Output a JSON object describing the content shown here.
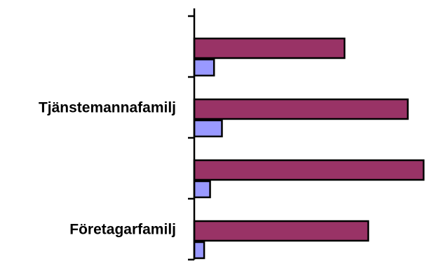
{
  "chart_data": {
    "type": "bar",
    "orientation": "horizontal",
    "title": "",
    "xlabel": "",
    "ylabel": "",
    "categories": [
      "Företagarfamilj",
      "",
      "Tjänstemannafamilj",
      ""
    ],
    "series": [
      {
        "values": [
          44,
          58,
          54,
          38
        ],
        "color": "#993366"
      },
      {
        "values": [
          2.5,
          4,
          7,
          5
        ],
        "color": "#9999ff"
      }
    ],
    "xlim": [
      0,
      58
    ],
    "grid": false,
    "legend": "none"
  }
}
